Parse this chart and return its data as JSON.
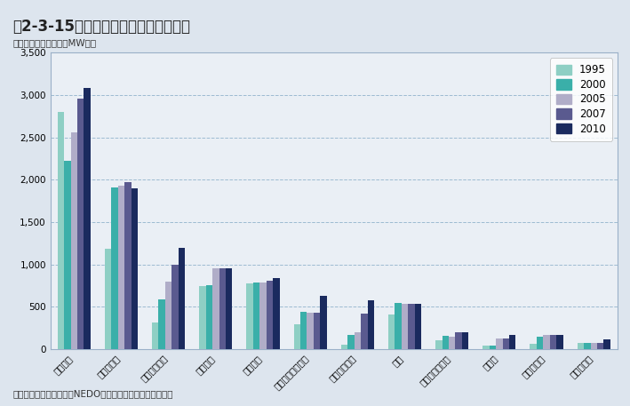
{
  "title": "図2-3-15　主要地熱資源国の開発動向",
  "ylabel_unit": "（地熱発電設備容量（MW））",
  "source": "資料：産業技術研究所（NEDO）「地熱発電の開発可能性」",
  "categories": [
    "アメリカ",
    "フィリピン",
    "インドネシア",
    "メキシコ",
    "イタリア",
    "ニュージーランド",
    "アイスランド",
    "日本",
    "エルサルバドル",
    "ケニア",
    "コスタリカ",
    "ニカラグア"
  ],
  "years": [
    "1995",
    "2000",
    "2005",
    "2007",
    "2010"
  ],
  "colors": [
    "#8ecfc4",
    "#3aafa9",
    "#b0adc8",
    "#5a5a8f",
    "#1a2a5e"
  ],
  "values": {
    "1995": [
      2800,
      1190,
      310,
      750,
      780,
      290,
      50,
      413,
      105,
      45,
      60,
      70
    ],
    "2000": [
      2228,
      1909,
      590,
      755,
      785,
      437,
      170,
      547,
      161,
      45,
      143,
      70
    ],
    "2005": [
      2564,
      1931,
      797,
      953,
      790,
      435,
      202,
      535,
      151,
      127,
      163,
      77
    ],
    "2007": [
      2958,
      1970,
      992,
      953,
      810,
      435,
      421,
      535,
      204,
      127,
      163,
      77
    ],
    "2010": [
      3086,
      1904,
      1197,
      958,
      843,
      628,
      575,
      536,
      204,
      167,
      166,
      120
    ]
  },
  "ylim": [
    0,
    3500
  ],
  "yticks": [
    0,
    500,
    1000,
    1500,
    2000,
    2500,
    3000,
    3500
  ],
  "background_color": "#dde5ee",
  "plot_bg_color": "#eaeff5",
  "grid_color": "#8aaec8",
  "title_fontsize": 12,
  "legend_fontsize": 8.5,
  "tick_fontsize": 7.5,
  "bar_width": 0.14
}
